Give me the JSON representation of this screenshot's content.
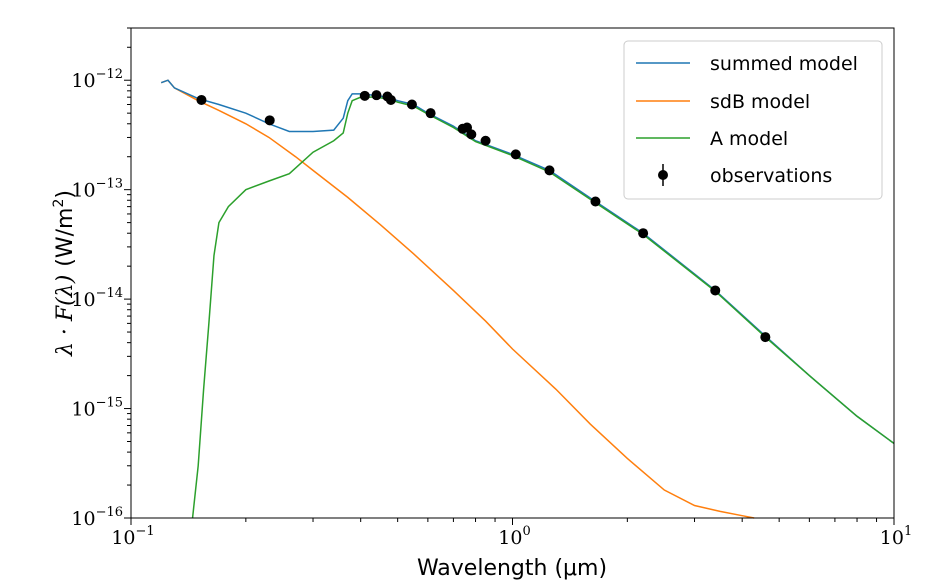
{
  "chart_data": {
    "type": "line",
    "xlabel": "Wavelength (μm)",
    "ylabel_math": "λ · F(λ)",
    "ylabel_unit": "(W/m",
    "ylabel_unit_sup": "2",
    "ylabel_unit_close": ")",
    "xscale": "log",
    "yscale": "log",
    "xlim": [
      0.1,
      10
    ],
    "ylim": [
      1e-16,
      3e-12
    ],
    "legend_position": "top-right",
    "x_ticks": [
      {
        "value": 0.1,
        "base": "10",
        "exp": "−1"
      },
      {
        "value": 1,
        "base": "10",
        "exp": "0"
      },
      {
        "value": 10,
        "base": "10",
        "exp": "1"
      }
    ],
    "y_ticks": [
      {
        "value": 1e-16,
        "base": "10",
        "exp": "−16"
      },
      {
        "value": 1e-15,
        "base": "10",
        "exp": "−15"
      },
      {
        "value": 1e-14,
        "base": "10",
        "exp": "−14"
      },
      {
        "value": 1e-13,
        "base": "10",
        "exp": "−13"
      },
      {
        "value": 1e-12,
        "base": "10",
        "exp": "−12"
      }
    ],
    "series": [
      {
        "name": "summed model",
        "color": "#1f77b4",
        "kind": "line",
        "x": [
          0.12,
          0.125,
          0.13,
          0.15,
          0.17,
          0.2,
          0.23,
          0.26,
          0.3,
          0.34,
          0.36,
          0.37,
          0.38,
          0.4,
          0.43,
          0.47,
          0.5,
          0.55,
          0.6,
          0.7,
          0.8,
          1.0,
          1.25,
          1.65,
          2.2,
          3.4,
          4.6,
          6.0,
          8.0,
          10.0
        ],
        "y": [
          9.5e-13,
          1e-12,
          8.5e-13,
          6.8e-13,
          6e-13,
          5e-13,
          4e-13,
          3.4e-13,
          3.4e-13,
          3.5e-13,
          4.5e-13,
          6.5e-13,
          7.5e-13,
          7.5e-13,
          7.3e-13,
          7e-13,
          6.5e-13,
          6e-13,
          5e-13,
          3.8e-13,
          2.8e-13,
          2.1e-13,
          1.5e-13,
          7.8e-14,
          4e-14,
          1.2e-14,
          4.6e-15,
          2e-15,
          8.5e-16,
          4.8e-16
        ]
      },
      {
        "name": "sdB model",
        "color": "#ff7f0e",
        "kind": "line",
        "x": [
          0.12,
          0.125,
          0.13,
          0.15,
          0.17,
          0.2,
          0.23,
          0.27,
          0.3,
          0.37,
          0.45,
          0.55,
          0.7,
          0.85,
          1.0,
          1.3,
          1.6,
          2.0,
          2.5,
          3.0,
          3.5,
          4.0,
          4.3
        ],
        "y": [
          9.5e-13,
          1e-12,
          8.5e-13,
          6.5e-13,
          5.3e-13,
          4e-13,
          3e-13,
          2e-13,
          1.5e-13,
          8.5e-14,
          4.8e-14,
          2.6e-14,
          1.2e-14,
          6.3e-15,
          3.5e-15,
          1.5e-15,
          7.2e-16,
          3.5e-16,
          1.8e-16,
          1.3e-16,
          1.15e-16,
          1.05e-16,
          1e-16
        ]
      },
      {
        "name": "A model",
        "color": "#2ca02c",
        "kind": "line",
        "x": [
          0.145,
          0.15,
          0.155,
          0.16,
          0.165,
          0.17,
          0.18,
          0.2,
          0.23,
          0.26,
          0.3,
          0.34,
          0.36,
          0.37,
          0.38,
          0.4,
          0.43,
          0.47,
          0.5,
          0.55,
          0.6,
          0.7,
          0.8,
          1.0,
          1.25,
          1.65,
          2.2,
          3.4,
          4.6,
          6.0,
          8.0,
          10.0
        ],
        "y": [
          1e-16,
          3e-16,
          1.5e-15,
          6e-15,
          2.5e-14,
          5e-14,
          7e-14,
          1e-13,
          1.2e-13,
          1.4e-13,
          2.2e-13,
          2.8e-13,
          3.3e-13,
          5e-13,
          6.5e-13,
          7e-13,
          7e-13,
          6.8e-13,
          6.3e-13,
          5.8e-13,
          4.9e-13,
          3.7e-13,
          2.75e-13,
          2.05e-13,
          1.45e-13,
          7.6e-14,
          3.9e-14,
          1.18e-14,
          4.5e-15,
          2e-15,
          8.5e-16,
          4.8e-16
        ]
      },
      {
        "name": "observations",
        "color": "#000000",
        "kind": "errorbar",
        "x": [
          0.153,
          0.231,
          0.41,
          0.44,
          0.47,
          0.48,
          0.545,
          0.61,
          0.74,
          0.76,
          0.78,
          0.85,
          1.02,
          1.25,
          1.65,
          2.2,
          3.4,
          4.6
        ],
        "y": [
          6.6e-13,
          4.3e-13,
          7.2e-13,
          7.3e-13,
          7.1e-13,
          6.6e-13,
          6e-13,
          5e-13,
          3.6e-13,
          3.7e-13,
          3.2e-13,
          2.8e-13,
          2.1e-13,
          1.5e-13,
          7.8e-14,
          4e-14,
          1.2e-14,
          4.5e-15
        ]
      }
    ]
  }
}
